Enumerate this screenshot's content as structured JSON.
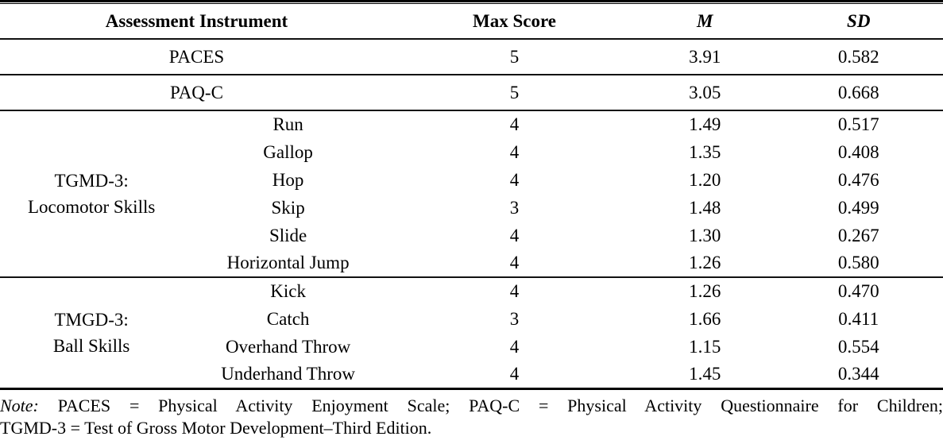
{
  "header": {
    "col_instrument": "Assessment Instrument",
    "col_max_score": "Max Score",
    "col_m": "M",
    "col_sd": "SD"
  },
  "rows": {
    "paces": {
      "instrument": "PACES",
      "max": "5",
      "m": "3.91",
      "sd": "0.582"
    },
    "paqc": {
      "instrument": "PAQ-C",
      "max": "5",
      "m": "3.05",
      "sd": "0.668"
    }
  },
  "locomotor": {
    "group_line1": "TGMD-3:",
    "group_line2": "Locomotor Skills",
    "skills": [
      {
        "name": "Run",
        "max": "4",
        "m": "1.49",
        "sd": "0.517"
      },
      {
        "name": "Gallop",
        "max": "4",
        "m": "1.35",
        "sd": "0.408"
      },
      {
        "name": "Hop",
        "max": "4",
        "m": "1.20",
        "sd": "0.476"
      },
      {
        "name": "Skip",
        "max": "3",
        "m": "1.48",
        "sd": "0.499"
      },
      {
        "name": "Slide",
        "max": "4",
        "m": "1.30",
        "sd": "0.267"
      },
      {
        "name": "Horizontal Jump",
        "max": "4",
        "m": "1.26",
        "sd": "0.580"
      }
    ]
  },
  "ball": {
    "group_line1": "TMGD-3:",
    "group_line2": "Ball Skills",
    "skills": [
      {
        "name": "Kick",
        "max": "4",
        "m": "1.26",
        "sd": "0.470"
      },
      {
        "name": "Catch",
        "max": "3",
        "m": "1.66",
        "sd": "0.411"
      },
      {
        "name": "Overhand Throw",
        "max": "4",
        "m": "1.15",
        "sd": "0.554"
      },
      {
        "name": "Underhand Throw",
        "max": "4",
        "m": "1.45",
        "sd": "0.344"
      }
    ]
  },
  "note": {
    "label": "Note:",
    "line1": "PACES = Physical Activity Enjoyment Scale; PAQ-C = Physical Activity Questionnaire for Children;",
    "line2": "TGMD-3 = Test of Gross Motor Development–Third Edition."
  }
}
